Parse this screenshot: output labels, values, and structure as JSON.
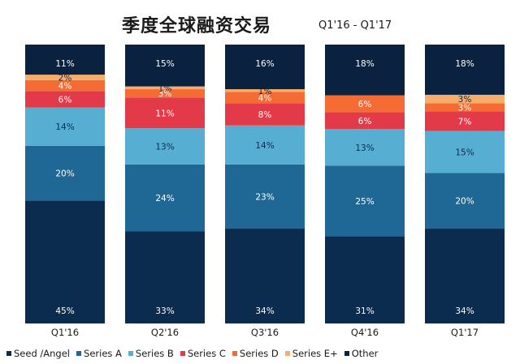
{
  "chart_data": {
    "type": "bar",
    "stacked": true,
    "title": "季度全球融资交易",
    "subtitle": "Q1'16 - Q1'17",
    "categories": [
      "Q1'16",
      "Q2'16",
      "Q3'16",
      "Q4'16",
      "Q1'17"
    ],
    "ylim": [
      0,
      100
    ],
    "grid": false,
    "legend_position": "bottom",
    "series": [
      {
        "name": "Seed /Angel",
        "color": "#0b2c4f",
        "values": [
          45,
          33,
          34,
          31,
          34
        ],
        "labels": [
          "45%",
          "33%",
          "34%",
          "31%",
          "34%"
        ]
      },
      {
        "name": "Series A",
        "color": "#1f6896",
        "values": [
          20,
          24,
          23,
          25,
          20
        ],
        "labels": [
          "20%",
          "24%",
          "23%",
          "25%",
          "20%"
        ]
      },
      {
        "name": "Series B",
        "color": "#56aed3",
        "values": [
          14,
          13,
          14,
          13,
          15
        ],
        "labels": [
          "14%",
          "13%",
          "14%",
          "13%",
          "15%"
        ]
      },
      {
        "name": "Series C",
        "color": "#e23a48",
        "values": [
          6,
          11,
          8,
          6,
          7
        ],
        "labels": [
          "6%",
          "11%",
          "8%",
          "6%",
          "7%"
        ]
      },
      {
        "name": "Series D",
        "color": "#f46c34",
        "values": [
          4,
          3,
          4,
          6,
          3
        ],
        "labels": [
          "4%",
          "3%",
          "4%",
          "6%",
          "3%"
        ]
      },
      {
        "name": "Series E+",
        "color": "#f6ad6c",
        "values": [
          2,
          1,
          1,
          0,
          3
        ],
        "labels": [
          "2%",
          "1%",
          "1%",
          "",
          "3%"
        ]
      },
      {
        "name": "Other",
        "color": "#0a2240",
        "values": [
          11,
          15,
          16,
          18,
          18
        ],
        "labels": [
          "11%",
          "15%",
          "16%",
          "18%",
          "18%"
        ]
      }
    ]
  }
}
